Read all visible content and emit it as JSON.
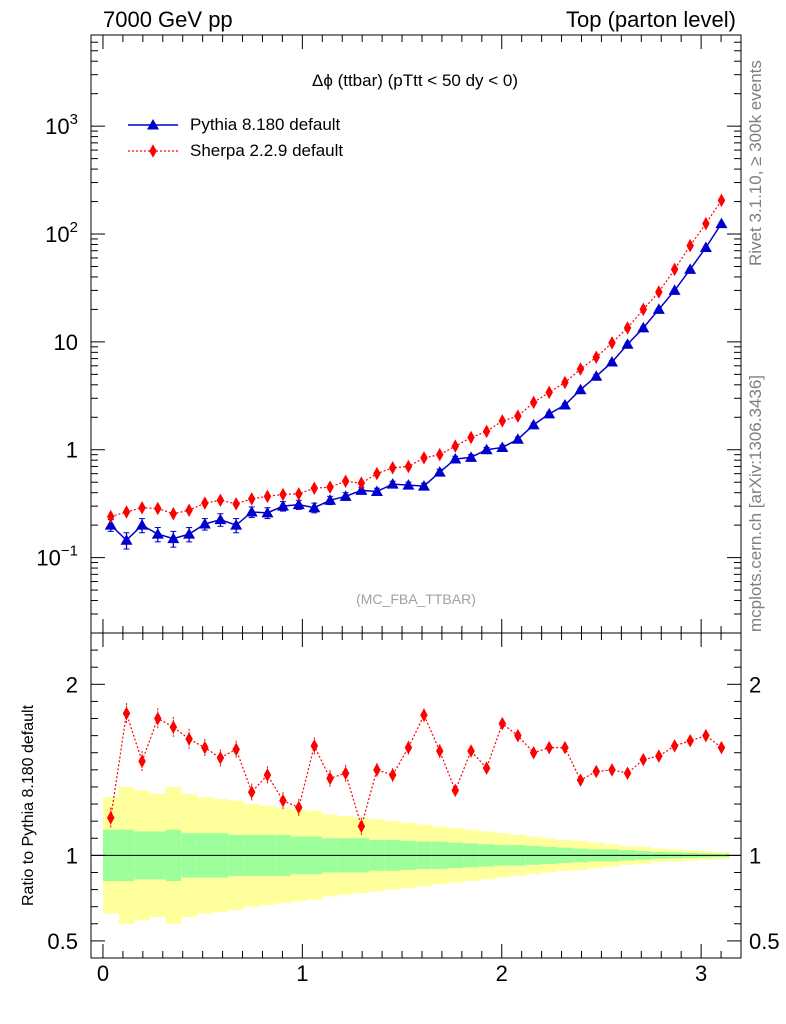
{
  "header": {
    "left": "7000 GeV pp",
    "right": "Top (parton level)"
  },
  "side_labels": {
    "rivet": "Rivet 3.1.10, ≥ 300k events",
    "mcplots": "mcplots.cern.ch [arXiv:1306.3436]"
  },
  "chart_data": [
    {
      "type": "line",
      "title": "Δϕ (ttbar) (pTtt < 50 dy < 0)",
      "annotation": "(MC_FBA_TTBAR)",
      "xlabel": "",
      "ylabel": "",
      "xlim": [
        -0.06,
        3.2
      ],
      "ylim": [
        0.02,
        7000
      ],
      "yscale": "log",
      "yticks": [
        {
          "value": 0.1,
          "label": "10^-1"
        },
        {
          "value": 1,
          "label": "1"
        },
        {
          "value": 10,
          "label": "10"
        },
        {
          "value": 100,
          "label": "10^2"
        },
        {
          "value": 1000,
          "label": "10^3"
        }
      ],
      "legend_position": "top-left",
      "x": [
        0.039,
        0.118,
        0.196,
        0.275,
        0.353,
        0.432,
        0.511,
        0.589,
        0.668,
        0.746,
        0.825,
        0.903,
        0.982,
        1.06,
        1.139,
        1.217,
        1.296,
        1.374,
        1.453,
        1.532,
        1.61,
        1.689,
        1.767,
        1.846,
        1.924,
        2.003,
        2.081,
        2.16,
        2.238,
        2.317,
        2.395,
        2.474,
        2.553,
        2.631,
        2.71,
        2.788,
        2.867,
        2.945,
        3.024,
        3.102
      ],
      "series": [
        {
          "name": "Pythia 8.180 default",
          "color": "#0000cc",
          "marker": "triangle",
          "line": "solid",
          "values": [
            0.2,
            0.145,
            0.2,
            0.165,
            0.15,
            0.165,
            0.205,
            0.225,
            0.2,
            0.265,
            0.26,
            0.3,
            0.31,
            0.29,
            0.34,
            0.37,
            0.42,
            0.41,
            0.48,
            0.47,
            0.46,
            0.62,
            0.82,
            0.85,
            1.0,
            1.05,
            1.25,
            1.7,
            2.15,
            2.6,
            3.6,
            4.8,
            6.5,
            9.5,
            13.5,
            20.0,
            30.0,
            47.0,
            75.0,
            125.0
          ],
          "errors": [
            0.025,
            0.025,
            0.03,
            0.025,
            0.025,
            0.025,
            0.025,
            0.03,
            0.03,
            0.03,
            0.03,
            0.03,
            0.03,
            0.03,
            0.03,
            0.03,
            0.03,
            0.03,
            0.03,
            0.03,
            0.03,
            0.04,
            0.05,
            0.05,
            0.05,
            0.05,
            0.06,
            0.07,
            0.08,
            0.09,
            0.11,
            0.14,
            0.18,
            0.25,
            0.35,
            0.5,
            0.7,
            1.0,
            1.5,
            2.0
          ]
        },
        {
          "name": "Sherpa 2.2.9 default",
          "color": "#ff0000",
          "marker": "diamond",
          "line": "dotted",
          "values": [
            0.24,
            0.265,
            0.29,
            0.285,
            0.255,
            0.275,
            0.32,
            0.34,
            0.315,
            0.35,
            0.37,
            0.385,
            0.39,
            0.44,
            0.45,
            0.51,
            0.49,
            0.6,
            0.68,
            0.7,
            0.84,
            0.9,
            1.08,
            1.3,
            1.48,
            1.85,
            2.05,
            2.75,
            3.4,
            4.2,
            5.6,
            7.2,
            9.8,
            13.5,
            20.0,
            29.0,
            47.0,
            78.0,
            125.0,
            205.0
          ]
        }
      ]
    },
    {
      "type": "line",
      "ylabel": "Ratio to Pythia 8.180 default",
      "xlim": [
        -0.06,
        3.2
      ],
      "ylim": [
        0.4,
        2.3
      ],
      "xticks": [
        0,
        1,
        2,
        3
      ],
      "yticks": [
        0.5,
        1,
        2
      ],
      "reference_line": 1,
      "ratio_values": [
        1.22,
        1.83,
        1.55,
        1.8,
        1.75,
        1.68,
        1.63,
        1.57,
        1.62,
        1.37,
        1.47,
        1.32,
        1.28,
        1.64,
        1.45,
        1.48,
        1.17,
        1.5,
        1.47,
        1.63,
        1.82,
        1.61,
        1.38,
        1.61,
        1.51,
        1.77,
        1.7,
        1.6,
        1.63,
        1.63,
        1.44,
        1.49,
        1.5,
        1.48,
        1.56,
        1.58,
        1.64,
        1.67,
        1.7,
        1.63
      ],
      "ratio_errors": [
        0.06,
        0.06,
        0.06,
        0.06,
        0.06,
        0.06,
        0.05,
        0.05,
        0.05,
        0.05,
        0.05,
        0.05,
        0.05,
        0.05,
        0.05,
        0.05,
        0.05,
        0.04,
        0.04,
        0.04,
        0.04,
        0.04,
        0.03,
        0.03,
        0.03,
        0.03,
        0.03,
        0.03,
        0.02,
        0.02,
        0.02,
        0.02,
        0.02,
        0.02,
        0.02,
        0.02,
        0.02,
        0.02,
        0.02,
        0.02
      ],
      "band_inner_halfwidth": [
        0.15,
        0.15,
        0.14,
        0.14,
        0.15,
        0.13,
        0.13,
        0.13,
        0.12,
        0.12,
        0.12,
        0.12,
        0.11,
        0.11,
        0.1,
        0.1,
        0.1,
        0.09,
        0.09,
        0.085,
        0.08,
        0.08,
        0.075,
        0.07,
        0.065,
        0.06,
        0.06,
        0.055,
        0.05,
        0.045,
        0.04,
        0.035,
        0.035,
        0.03,
        0.025,
        0.02,
        0.018,
        0.015,
        0.012,
        0.01
      ],
      "band_outer_halfwidth": [
        0.34,
        0.4,
        0.38,
        0.36,
        0.4,
        0.36,
        0.34,
        0.33,
        0.32,
        0.3,
        0.29,
        0.28,
        0.27,
        0.26,
        0.24,
        0.23,
        0.22,
        0.21,
        0.2,
        0.19,
        0.18,
        0.17,
        0.16,
        0.15,
        0.14,
        0.13,
        0.12,
        0.11,
        0.1,
        0.09,
        0.085,
        0.075,
        0.065,
        0.055,
        0.05,
        0.04,
        0.035,
        0.03,
        0.025,
        0.02
      ],
      "band_colors": {
        "inner": "#9cff9c",
        "outer": "#ffff9c"
      }
    }
  ]
}
